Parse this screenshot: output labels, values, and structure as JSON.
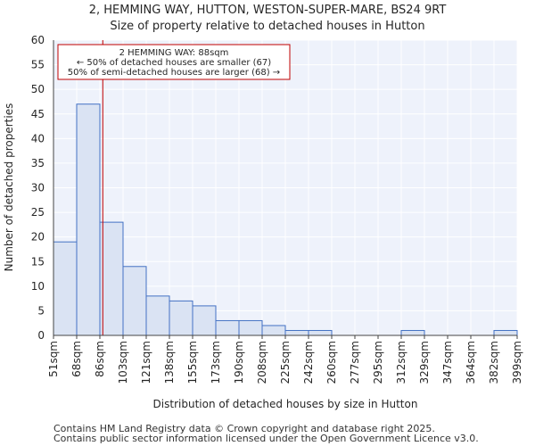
{
  "chart_data": {
    "type": "bar",
    "title": "2, HEMMING WAY, HUTTON, WESTON-SUPER-MARE, BS24 9RT",
    "subtitle": "Size of property relative to detached houses in Hutton",
    "xlabel": "Distribution of detached houses by size in Hutton",
    "ylabel": "Number of detached properties",
    "ylim": [
      0,
      60
    ],
    "yticks": [
      0,
      5,
      10,
      15,
      20,
      25,
      30,
      35,
      40,
      45,
      50,
      55,
      60
    ],
    "grid": true,
    "bin_edges": [
      51,
      68,
      86,
      103,
      121,
      138,
      155,
      173,
      190,
      208,
      225,
      242,
      260,
      277,
      295,
      312,
      329,
      347,
      364,
      382,
      399
    ],
    "xtick_labels": [
      "51sqm",
      "68sqm",
      "86sqm",
      "103sqm",
      "121sqm",
      "138sqm",
      "155sqm",
      "173sqm",
      "190sqm",
      "208sqm",
      "225sqm",
      "242sqm",
      "260sqm",
      "277sqm",
      "295sqm",
      "312sqm",
      "329sqm",
      "347sqm",
      "364sqm",
      "382sqm",
      "399sqm"
    ],
    "values": [
      19,
      47,
      23,
      14,
      8,
      7,
      6,
      3,
      3,
      2,
      1,
      1,
      0,
      0,
      0,
      1,
      0,
      0,
      0,
      1
    ],
    "bar_color": "#dae3f3",
    "bar_edge_color": "#4472c4",
    "marker": {
      "value": 88,
      "color": "#c00000",
      "annotation": [
        "2 HEMMING WAY: 88sqm",
        "← 50% of detached houses are smaller (67)",
        "50% of semi-detached houses are larger (68) →"
      ]
    }
  },
  "footer": {
    "line1": "Contains HM Land Registry data © Crown copyright and database right 2025.",
    "line2": "Contains public sector information licensed under the Open Government Licence v3.0."
  }
}
